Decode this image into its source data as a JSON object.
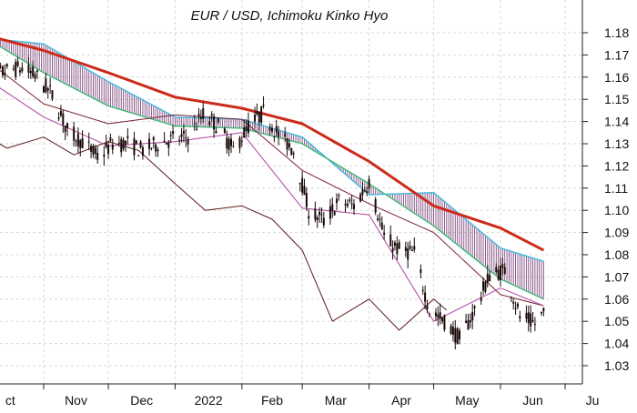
{
  "chart_data": {
    "type": "candlestick",
    "title": "EUR / USD, Ichimoku Kinko Hyo",
    "x_labels": [
      "Oct",
      "Nov",
      "Dec",
      "2022",
      "Feb",
      "Mar",
      "Apr",
      "May",
      "Jun",
      "Jul"
    ],
    "x_label_display": [
      "ct",
      "Nov",
      "Dec",
      "2022",
      "Feb",
      "Mar",
      "Apr",
      "May",
      "Jun",
      "Ju"
    ],
    "y_ticks": [
      1.18,
      1.17,
      1.16,
      1.15,
      1.14,
      1.13,
      1.12,
      1.11,
      1.1,
      1.09,
      1.08,
      1.07,
      1.06,
      1.05,
      1.04,
      1.03
    ],
    "y_tick_labels": [
      "1.18",
      "1.17",
      "1.16",
      "1.15",
      "1.14",
      "1.13",
      "1.12",
      "1.11",
      "1.10",
      "1.09",
      "1.08",
      "1.07",
      "1.06",
      "1.05",
      "1.04",
      "1.03"
    ],
    "ylim": [
      1.02,
      1.19
    ],
    "grid": true,
    "y_axis_position": "right",
    "colors": {
      "candle": "#1a0808",
      "moving_average": "#cc2a1a",
      "kijun": "#7a2030",
      "tenkan": "#b040a0",
      "chikou": "#5a1818",
      "cloud_span_a": "#3cb878",
      "cloud_span_b": "#40b8e0",
      "cloud_fill": "#6a2a6a"
    },
    "price_path": [
      [
        "2021-10-01",
        1.159
      ],
      [
        "2021-10-08",
        1.16
      ],
      [
        "2021-10-15",
        1.163
      ],
      [
        "2021-10-22",
        1.164
      ],
      [
        "2021-10-29",
        1.16
      ],
      [
        "2021-11-05",
        1.152
      ],
      [
        "2021-11-12",
        1.136
      ],
      [
        "2021-11-19",
        1.131
      ],
      [
        "2021-11-26",
        1.124
      ],
      [
        "2021-12-03",
        1.13
      ],
      [
        "2021-12-10",
        1.13
      ],
      [
        "2021-12-17",
        1.127
      ],
      [
        "2021-12-24",
        1.13
      ],
      [
        "2021-12-31",
        1.132
      ],
      [
        "2022-01-07",
        1.133
      ],
      [
        "2022-01-14",
        1.143
      ],
      [
        "2022-01-21",
        1.138
      ],
      [
        "2022-01-28",
        1.127
      ],
      [
        "2022-02-04",
        1.138
      ],
      [
        "2022-02-11",
        1.144
      ],
      [
        "2022-02-18",
        1.134
      ],
      [
        "2022-02-25",
        1.127
      ],
      [
        "2022-03-04",
        1.1
      ],
      [
        "2022-03-11",
        1.095
      ],
      [
        "2022-03-18",
        1.104
      ],
      [
        "2022-03-25",
        1.102
      ],
      [
        "2022-04-01",
        1.113
      ],
      [
        "2022-04-08",
        1.088
      ],
      [
        "2022-04-15",
        1.082
      ],
      [
        "2022-04-22",
        1.081
      ],
      [
        "2022-04-29",
        1.055
      ],
      [
        "2022-05-06",
        1.05
      ],
      [
        "2022-05-13",
        1.042
      ],
      [
        "2022-05-20",
        1.055
      ],
      [
        "2022-05-27",
        1.071
      ],
      [
        "2022-06-03",
        1.073
      ],
      [
        "2022-06-10",
        1.052
      ],
      [
        "2022-06-17",
        1.049
      ],
      [
        "2022-06-21",
        1.054
      ]
    ],
    "moving_average": [
      [
        "2021-10-01",
        1.18
      ],
      [
        "2021-11-01",
        1.172
      ],
      [
        "2021-12-01",
        1.162
      ],
      [
        "2022-01-01",
        1.151
      ],
      [
        "2022-02-01",
        1.146
      ],
      [
        "2022-03-01",
        1.139
      ],
      [
        "2022-04-01",
        1.122
      ],
      [
        "2022-05-01",
        1.102
      ],
      [
        "2022-06-01",
        1.092
      ],
      [
        "2022-06-21",
        1.082
      ]
    ],
    "kijun_sen": [
      [
        "2021-10-01",
        1.171
      ],
      [
        "2021-11-01",
        1.148
      ],
      [
        "2021-12-01",
        1.139
      ],
      [
        "2022-01-01",
        1.143
      ],
      [
        "2022-02-01",
        1.141
      ],
      [
        "2022-03-01",
        1.118
      ],
      [
        "2022-04-01",
        1.103
      ],
      [
        "2022-05-01",
        1.09
      ],
      [
        "2022-06-01",
        1.062
      ],
      [
        "2022-06-21",
        1.057
      ]
    ],
    "tenkan_sen": [
      [
        "2021-10-01",
        1.162
      ],
      [
        "2021-11-01",
        1.142
      ],
      [
        "2021-12-01",
        1.129
      ],
      [
        "2022-01-01",
        1.131
      ],
      [
        "2022-02-01",
        1.135
      ],
      [
        "2022-03-01",
        1.101
      ],
      [
        "2022-04-01",
        1.098
      ],
      [
        "2022-05-01",
        1.05
      ],
      [
        "2022-06-01",
        1.065
      ],
      [
        "2022-06-21",
        1.057
      ]
    ],
    "chikou_span": [
      [
        "2021-10-01",
        1.136
      ],
      [
        "2021-10-15",
        1.128
      ],
      [
        "2021-11-01",
        1.133
      ],
      [
        "2021-11-15",
        1.125
      ],
      [
        "2021-12-01",
        1.131
      ],
      [
        "2021-12-15",
        1.127
      ],
      [
        "2022-01-01",
        1.112
      ],
      [
        "2022-01-15",
        1.1
      ],
      [
        "2022-02-01",
        1.102
      ],
      [
        "2022-02-15",
        1.096
      ],
      [
        "2022-03-01",
        1.082
      ],
      [
        "2022-03-15",
        1.05
      ],
      [
        "2022-04-01",
        1.06
      ],
      [
        "2022-04-15",
        1.046
      ],
      [
        "2022-05-01",
        1.06
      ],
      [
        "2022-05-07",
        1.055
      ]
    ],
    "senkou_span_a": [
      [
        "2021-10-01",
        1.18
      ],
      [
        "2021-11-01",
        1.162
      ],
      [
        "2021-12-01",
        1.147
      ],
      [
        "2022-01-01",
        1.138
      ],
      [
        "2022-02-01",
        1.137
      ],
      [
        "2022-03-01",
        1.13
      ],
      [
        "2022-04-01",
        1.112
      ],
      [
        "2022-05-01",
        1.093
      ],
      [
        "2022-06-01",
        1.069
      ],
      [
        "2022-06-21",
        1.06
      ]
    ],
    "senkou_span_b": [
      [
        "2021-10-01",
        1.178
      ],
      [
        "2021-11-01",
        1.175
      ],
      [
        "2021-12-01",
        1.158
      ],
      [
        "2022-01-01",
        1.142
      ],
      [
        "2022-02-01",
        1.141
      ],
      [
        "2022-03-01",
        1.133
      ],
      [
        "2022-04-01",
        1.107
      ],
      [
        "2022-05-01",
        1.108
      ],
      [
        "2022-06-01",
        1.083
      ],
      [
        "2022-06-21",
        1.077
      ]
    ]
  }
}
